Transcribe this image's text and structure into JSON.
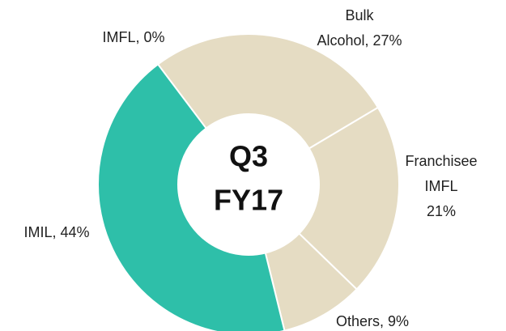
{
  "chart_data": {
    "type": "donut",
    "values": [
      0,
      27,
      21,
      9,
      44
    ],
    "value_labels": [
      [
        "IMFL, 0%"
      ],
      [
        "Bulk",
        "Alcohol, 27%"
      ],
      [
        "Franchisee",
        "IMFL",
        "21%"
      ],
      [
        "Others, 9%"
      ],
      [
        "IMIL, 44%"
      ]
    ],
    "colors": [
      "#e5dcc3",
      "#e5dcc3",
      "#e5dcc3",
      "#e5dcc3",
      "#2ebfa9"
    ],
    "center_text": [
      "Q3",
      "FY17"
    ]
  }
}
